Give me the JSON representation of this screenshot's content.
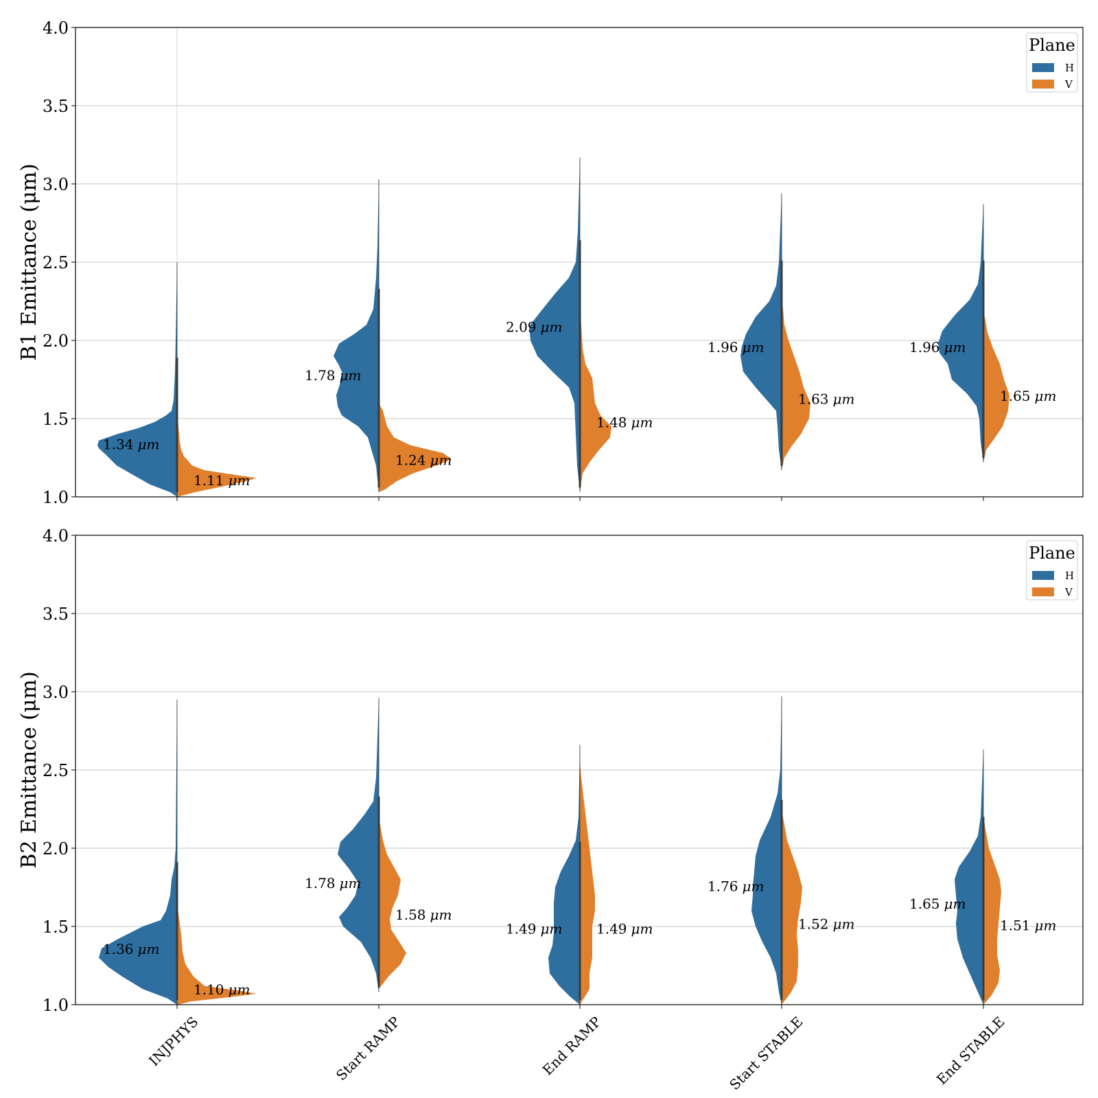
{
  "colors": {
    "H": "#2e6fa0",
    "V": "#e07f2c",
    "grid": "#b0b0b0",
    "inner": "#3a3a3a"
  },
  "legend_title": "Plane",
  "unit_label": "μm",
  "chart_data": [
    {
      "type": "violin",
      "ylabel": "B1 Emittance (μm)",
      "ylim": [
        1.0,
        4.0
      ],
      "yticks": [
        "1.0",
        "1.5",
        "2.0",
        "2.5",
        "3.0",
        "3.5",
        "4.0"
      ],
      "categories": [
        "INJPHYS",
        "Start RAMP",
        "End RAMP",
        "Start STABLE",
        "End STABLE"
      ],
      "legend": [
        "H",
        "V"
      ],
      "legend_position": "top-right",
      "grid": "horizontal",
      "series": [
        {
          "name": "H",
          "labels": [
            "1.34",
            "1.78",
            "2.09",
            "1.96",
            "1.96"
          ],
          "medians": [
            1.34,
            1.78,
            2.09,
            1.96,
            1.96
          ],
          "range": [
            [
              1.0,
              2.5
            ],
            [
              1.03,
              3.03
            ],
            [
              1.03,
              3.17
            ],
            [
              1.17,
              2.94
            ],
            [
              1.22,
              2.87
            ]
          ]
        },
        {
          "name": "V",
          "labels": [
            "1.11",
            "1.24",
            "1.48",
            "1.63",
            "1.65"
          ],
          "medians": [
            1.11,
            1.24,
            1.48,
            1.63,
            1.65
          ]
        }
      ]
    },
    {
      "type": "violin",
      "ylabel": "B2 Emittance (μm)",
      "ylim": [
        1.0,
        4.0
      ],
      "yticks": [
        "1.0",
        "1.5",
        "2.0",
        "2.5",
        "3.0",
        "3.5",
        "4.0"
      ],
      "categories": [
        "INJPHYS",
        "Start RAMP",
        "End RAMP",
        "Start STABLE",
        "End STABLE"
      ],
      "legend": [
        "H",
        "V"
      ],
      "legend_position": "top-right",
      "grid": "horizontal",
      "series": [
        {
          "name": "H",
          "labels": [
            "1.36",
            "1.78",
            "1.49",
            "1.76",
            "1.65"
          ],
          "medians": [
            1.36,
            1.78,
            1.49,
            1.76,
            1.65
          ],
          "range": [
            [
              1.0,
              2.95
            ],
            [
              1.08,
              2.96
            ],
            [
              1.0,
              2.66
            ],
            [
              1.0,
              2.97
            ],
            [
              1.0,
              2.63
            ]
          ]
        },
        {
          "name": "V",
          "labels": [
            "1.10",
            "1.58",
            "1.49",
            "1.52",
            "1.51"
          ],
          "medians": [
            1.1,
            1.58,
            1.49,
            1.52,
            1.51
          ]
        }
      ]
    }
  ]
}
